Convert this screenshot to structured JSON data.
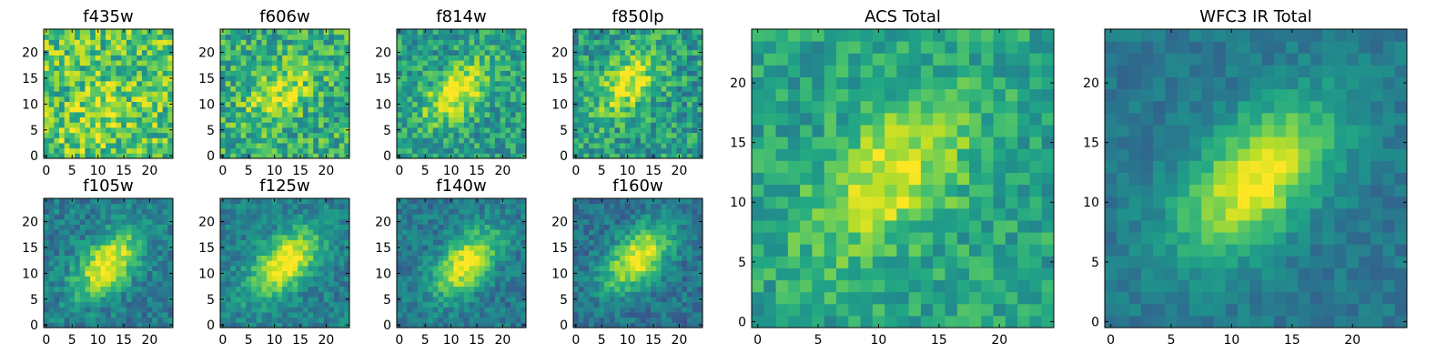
{
  "figure": {
    "description_title": ""
  },
  "chart_data": [
    {
      "type": "heatmap",
      "title": "f435w",
      "grid_size": 25,
      "colormap": "viridis",
      "xticks": [
        "0",
        "5",
        "10",
        "15",
        "20"
      ],
      "yticks": [
        "0",
        "5",
        "10",
        "15",
        "20"
      ],
      "xlim": [
        0,
        25
      ],
      "ylim": [
        0,
        25
      ],
      "peak_center": [
        10,
        8
      ],
      "peak_strength": 0.15,
      "noise_level": 0.5,
      "base_level": 0.72,
      "seed": 11
    },
    {
      "type": "heatmap",
      "title": "f606w",
      "grid_size": 25,
      "colormap": "viridis",
      "xticks": [
        "0",
        "5",
        "10",
        "15",
        "20"
      ],
      "yticks": [
        "0",
        "5",
        "10",
        "15",
        "20"
      ],
      "xlim": [
        0,
        25
      ],
      "ylim": [
        0,
        25
      ],
      "peak_center": [
        11,
        12
      ],
      "peak_strength": 0.3,
      "noise_level": 0.45,
      "base_level": 0.62,
      "seed": 22
    },
    {
      "type": "heatmap",
      "title": "f814w",
      "grid_size": 25,
      "colormap": "viridis",
      "xticks": [
        "0",
        "5",
        "10",
        "15",
        "20"
      ],
      "yticks": [
        "0",
        "5",
        "10",
        "15",
        "20"
      ],
      "xlim": [
        0,
        25
      ],
      "ylim": [
        0,
        25
      ],
      "peak_center": [
        11,
        12
      ],
      "peak_strength": 0.45,
      "noise_level": 0.4,
      "base_level": 0.55,
      "seed": 33
    },
    {
      "type": "heatmap",
      "title": "f850lp",
      "grid_size": 25,
      "colormap": "viridis",
      "xticks": [
        "0",
        "5",
        "10",
        "15",
        "20"
      ],
      "yticks": [
        "0",
        "5",
        "10",
        "15",
        "20"
      ],
      "xlim": [
        0,
        25
      ],
      "ylim": [
        0,
        25
      ],
      "peak_center": [
        10,
        14
      ],
      "peak_strength": 0.4,
      "noise_level": 0.42,
      "base_level": 0.55,
      "seed": 44
    },
    {
      "type": "heatmap",
      "title": "f105w",
      "grid_size": 25,
      "colormap": "viridis",
      "xticks": [
        "0",
        "5",
        "10",
        "15",
        "20"
      ],
      "yticks": [
        "0",
        "5",
        "10",
        "15",
        "20"
      ],
      "xlim": [
        0,
        25
      ],
      "ylim": [
        0,
        25
      ],
      "peak_center": [
        12,
        12
      ],
      "peak_strength": 0.6,
      "noise_level": 0.28,
      "base_level": 0.42,
      "seed": 55
    },
    {
      "type": "heatmap",
      "title": "f125w",
      "grid_size": 25,
      "colormap": "viridis",
      "xticks": [
        "0",
        "5",
        "10",
        "15",
        "20"
      ],
      "yticks": [
        "0",
        "5",
        "10",
        "15",
        "20"
      ],
      "xlim": [
        0,
        25
      ],
      "ylim": [
        0,
        25
      ],
      "peak_center": [
        12,
        12
      ],
      "peak_strength": 0.6,
      "noise_level": 0.25,
      "base_level": 0.44,
      "seed": 66
    },
    {
      "type": "heatmap",
      "title": "f140w",
      "grid_size": 25,
      "colormap": "viridis",
      "xticks": [
        "0",
        "5",
        "10",
        "15",
        "20"
      ],
      "yticks": [
        "0",
        "5",
        "10",
        "15",
        "20"
      ],
      "xlim": [
        0,
        25
      ],
      "ylim": [
        0,
        25
      ],
      "peak_center": [
        13,
        12
      ],
      "peak_strength": 0.6,
      "noise_level": 0.25,
      "base_level": 0.4,
      "seed": 77
    },
    {
      "type": "heatmap",
      "title": "f160w",
      "grid_size": 25,
      "colormap": "viridis",
      "xticks": [
        "0",
        "5",
        "10",
        "15",
        "20"
      ],
      "yticks": [
        "0",
        "5",
        "10",
        "15",
        "20"
      ],
      "xlim": [
        0,
        25
      ],
      "ylim": [
        0,
        25
      ],
      "peak_center": [
        12,
        13
      ],
      "peak_strength": 0.62,
      "noise_level": 0.25,
      "base_level": 0.38,
      "seed": 88
    },
    {
      "type": "heatmap",
      "title": "ACS Total",
      "grid_size": 25,
      "colormap": "viridis",
      "xticks": [
        "0",
        "5",
        "10",
        "15",
        "20"
      ],
      "yticks": [
        "0",
        "5",
        "10",
        "15",
        "20"
      ],
      "xlim": [
        0,
        25
      ],
      "ylim": [
        0,
        25
      ],
      "peak_center": [
        11,
        12
      ],
      "peak_strength": 0.38,
      "noise_level": 0.3,
      "base_level": 0.58,
      "seed": 99
    },
    {
      "type": "heatmap",
      "title": "WFC3 IR Total",
      "grid_size": 25,
      "colormap": "viridis",
      "xticks": [
        "0",
        "5",
        "10",
        "15",
        "20"
      ],
      "yticks": [
        "0",
        "5",
        "10",
        "15",
        "20"
      ],
      "xlim": [
        0,
        25
      ],
      "ylim": [
        0,
        25
      ],
      "peak_center": [
        12,
        12
      ],
      "peak_strength": 0.6,
      "noise_level": 0.16,
      "base_level": 0.4,
      "seed": 123
    }
  ]
}
